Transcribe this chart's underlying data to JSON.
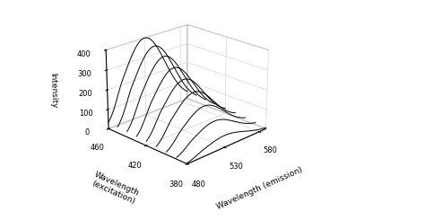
{
  "emission_range": [
    480,
    590
  ],
  "excitation_wavelengths": [
    380,
    390,
    400,
    410,
    420,
    430,
    440,
    450,
    460
  ],
  "peak_emission": 530,
  "peak_sigma": 28,
  "intensity_scale": [
    60,
    110,
    165,
    215,
    260,
    300,
    340,
    375,
    400
  ],
  "xlabel": "Wavelength (emission)",
  "ylabel": "Wavelength\n(excitation)",
  "zlabel": "Intensity",
  "xticks": [
    480,
    530,
    580
  ],
  "yticks": [
    380,
    420,
    460
  ],
  "zticks": [
    0,
    100,
    200,
    300,
    400
  ],
  "line_color": "black",
  "background_color": "white",
  "figsize": [
    4.74,
    2.45
  ],
  "dpi": 100,
  "elev": 22,
  "azim": -135
}
